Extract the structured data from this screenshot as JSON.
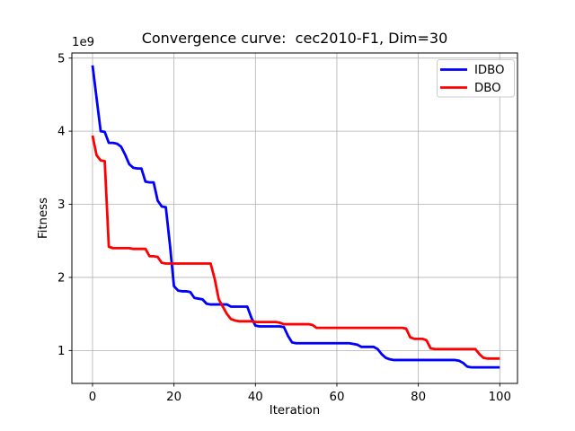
{
  "chart_data": {
    "type": "line",
    "title": "Convergence curve:  cec2010-F1, Dim=30",
    "xlabel": "Iteration",
    "ylabel": "Fitness",
    "y_offset_label": "1e9",
    "y_unit": 1000000000,
    "grid": true,
    "legend_position": "upper right",
    "xlim": [
      -5.07,
      104.35
    ],
    "ylim": [
      0.55,
      5.07
    ],
    "x_ticks": [
      0,
      20,
      40,
      60,
      80,
      100
    ],
    "y_ticks": [
      1,
      2,
      3,
      4,
      5
    ],
    "x": [
      0,
      1,
      2,
      3,
      4,
      5,
      6,
      7,
      8,
      9,
      10,
      11,
      12,
      13,
      14,
      15,
      16,
      17,
      18,
      19,
      20,
      21,
      22,
      23,
      24,
      25,
      26,
      27,
      28,
      29,
      30,
      31,
      32,
      33,
      34,
      35,
      36,
      37,
      38,
      39,
      40,
      41,
      42,
      43,
      44,
      45,
      46,
      47,
      48,
      49,
      50,
      51,
      52,
      53,
      54,
      55,
      56,
      57,
      58,
      59,
      60,
      61,
      62,
      63,
      64,
      65,
      66,
      67,
      68,
      69,
      70,
      71,
      72,
      73,
      74,
      75,
      76,
      77,
      78,
      79,
      80,
      81,
      82,
      83,
      84,
      85,
      86,
      87,
      88,
      89,
      90,
      91,
      92,
      93,
      94,
      95,
      96,
      97,
      98,
      99,
      100
    ],
    "series": [
      {
        "name": "IDBO",
        "color": "#0000ff",
        "values": [
          4.9,
          4.45,
          4.0,
          3.99,
          3.84,
          3.84,
          3.83,
          3.79,
          3.68,
          3.55,
          3.5,
          3.49,
          3.49,
          3.31,
          3.3,
          3.3,
          3.05,
          2.97,
          2.96,
          2.45,
          1.88,
          1.82,
          1.81,
          1.81,
          1.8,
          1.72,
          1.71,
          1.7,
          1.64,
          1.63,
          1.63,
          1.63,
          1.63,
          1.63,
          1.6,
          1.6,
          1.6,
          1.6,
          1.6,
          1.45,
          1.34,
          1.33,
          1.33,
          1.33,
          1.33,
          1.33,
          1.33,
          1.32,
          1.2,
          1.11,
          1.1,
          1.1,
          1.1,
          1.1,
          1.1,
          1.1,
          1.1,
          1.1,
          1.1,
          1.1,
          1.1,
          1.1,
          1.1,
          1.1,
          1.09,
          1.08,
          1.05,
          1.05,
          1.05,
          1.05,
          1.02,
          0.95,
          0.9,
          0.88,
          0.87,
          0.87,
          0.87,
          0.87,
          0.87,
          0.87,
          0.87,
          0.87,
          0.87,
          0.87,
          0.87,
          0.87,
          0.87,
          0.87,
          0.87,
          0.87,
          0.86,
          0.83,
          0.78,
          0.77,
          0.77,
          0.77,
          0.77,
          0.77,
          0.77,
          0.77,
          0.77
        ]
      },
      {
        "name": "DBO",
        "color": "#ff0000",
        "values": [
          3.94,
          3.67,
          3.6,
          3.59,
          2.42,
          2.4,
          2.4,
          2.4,
          2.4,
          2.4,
          2.39,
          2.39,
          2.39,
          2.39,
          2.29,
          2.29,
          2.28,
          2.2,
          2.19,
          2.19,
          2.19,
          2.19,
          2.19,
          2.19,
          2.19,
          2.19,
          2.19,
          2.19,
          2.19,
          2.19,
          1.98,
          1.7,
          1.6,
          1.5,
          1.43,
          1.41,
          1.4,
          1.4,
          1.4,
          1.4,
          1.39,
          1.39,
          1.39,
          1.39,
          1.39,
          1.39,
          1.38,
          1.36,
          1.36,
          1.36,
          1.36,
          1.36,
          1.36,
          1.36,
          1.35,
          1.31,
          1.31,
          1.31,
          1.31,
          1.31,
          1.31,
          1.31,
          1.31,
          1.31,
          1.31,
          1.31,
          1.31,
          1.31,
          1.31,
          1.31,
          1.31,
          1.31,
          1.31,
          1.31,
          1.31,
          1.31,
          1.31,
          1.3,
          1.18,
          1.16,
          1.16,
          1.16,
          1.14,
          1.03,
          1.02,
          1.02,
          1.02,
          1.02,
          1.02,
          1.02,
          1.02,
          1.02,
          1.02,
          1.02,
          1.02,
          0.95,
          0.9,
          0.89,
          0.89,
          0.89,
          0.89
        ]
      }
    ]
  }
}
